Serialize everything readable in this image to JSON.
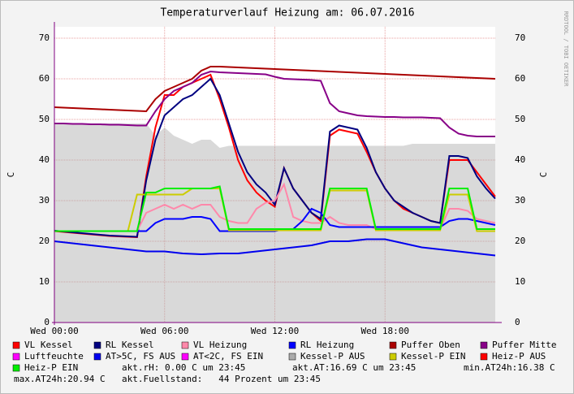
{
  "chart_data": {
    "type": "line",
    "title": "Temperaturverlauf Heizung am: 06.07.2016",
    "y_label": "C",
    "watermark": "RRDTOOL / TOBI OETIKER",
    "grid": true,
    "xlim": [
      0,
      24
    ],
    "ylim": [
      0,
      72.8
    ],
    "yticks": [
      0,
      10,
      20,
      30,
      40,
      50,
      60,
      70
    ],
    "xticks": [
      {
        "value": 0,
        "label": "Wed 00:00"
      },
      {
        "value": 6,
        "label": "Wed 06:00"
      },
      {
        "value": 12,
        "label": "Wed 12:00"
      },
      {
        "value": 18,
        "label": "Wed 18:00"
      }
    ],
    "x": [
      0,
      0.5,
      1,
      1.5,
      2,
      2.5,
      3,
      3.5,
      4,
      4.5,
      5,
      5.5,
      6,
      6.5,
      7,
      7.5,
      8,
      8.5,
      9,
      9.5,
      10,
      10.5,
      11,
      11.5,
      12,
      12.5,
      13,
      13.5,
      14,
      14.5,
      15,
      15.5,
      16,
      16.5,
      17,
      17.5,
      18,
      18.5,
      19,
      19.5,
      20,
      20.5,
      21,
      21.5,
      22,
      22.5,
      23,
      23.5,
      24
    ],
    "series": [
      {
        "name": "VL Kessel",
        "color": "#ff0000",
        "values": [
          22.5,
          22.3,
          22.1,
          21.9,
          21.7,
          21.5,
          21.3,
          21.2,
          21.1,
          21,
          36,
          48,
          56,
          56,
          58,
          59,
          60,
          61,
          55,
          48,
          40,
          35,
          32,
          30,
          28.5,
          38,
          33,
          30,
          27,
          25,
          46,
          47.5,
          47,
          46.5,
          42,
          37,
          33,
          30,
          28,
          27,
          26,
          25,
          24.5,
          40,
          40,
          40,
          37,
          34,
          31
        ]
      },
      {
        "name": "RL Kessel",
        "color": "#000080",
        "values": [
          22.6,
          22.4,
          22.2,
          22,
          21.8,
          21.6,
          21.4,
          21.3,
          21.2,
          21.1,
          35,
          45,
          51,
          53,
          55,
          56,
          58,
          60,
          56,
          49,
          42,
          37,
          34,
          32,
          29,
          38,
          33,
          30,
          27,
          25.5,
          47,
          48.5,
          48,
          47.5,
          43,
          37,
          33,
          30,
          28.5,
          27,
          26,
          25,
          24.5,
          41,
          41,
          40.5,
          36,
          33,
          30.5
        ]
      },
      {
        "name": "VL Heizung",
        "color": "#ff88aa",
        "values": [
          22.5,
          22.5,
          22.5,
          22.5,
          22.5,
          22.5,
          22.5,
          22.5,
          22.5,
          22.5,
          27,
          28,
          29,
          28,
          29,
          28,
          29,
          29,
          26,
          25,
          24.5,
          24.5,
          28,
          29.5,
          30,
          34,
          26,
          25,
          24.5,
          24.5,
          26,
          24.5,
          24,
          24,
          24,
          23,
          23,
          23,
          23,
          23,
          23,
          23,
          23,
          28,
          28,
          27.5,
          25.5,
          25,
          24.5
        ]
      },
      {
        "name": "RL Heizung",
        "color": "#0000ff",
        "values": [
          22.5,
          22.5,
          22.5,
          22.5,
          22.5,
          22.5,
          22.5,
          22.5,
          22.5,
          22.5,
          22.5,
          24.5,
          25.5,
          25.5,
          25.5,
          26,
          26,
          25.5,
          22.5,
          22.5,
          22.5,
          22.5,
          22.5,
          22.5,
          22.5,
          23,
          23,
          25,
          28,
          27,
          24,
          23.5,
          23.5,
          23.5,
          23.5,
          23.5,
          23.5,
          23.5,
          23.5,
          23.5,
          23.5,
          23.5,
          23.5,
          25,
          25.5,
          25.5,
          25,
          24.5,
          24
        ]
      },
      {
        "name": "Puffer Oben",
        "color": "#aa0000",
        "values": [
          53,
          52.9,
          52.8,
          52.7,
          52.6,
          52.5,
          52.4,
          52.3,
          52.2,
          52.1,
          52,
          55,
          57,
          58,
          59,
          60,
          62,
          63,
          63,
          62.9,
          62.8,
          62.7,
          62.6,
          62.5,
          62.4,
          62.3,
          62.2,
          62.1,
          62,
          61.9,
          61.8,
          61.7,
          61.6,
          61.5,
          61.4,
          61.3,
          61.2,
          61.1,
          61,
          60.9,
          60.8,
          60.7,
          60.6,
          60.5,
          60.4,
          60.3,
          60.2,
          60.1,
          60
        ]
      },
      {
        "name": "Puffer Mitte",
        "color": "#880088",
        "values": [
          49,
          49,
          48.9,
          48.9,
          48.8,
          48.8,
          48.7,
          48.7,
          48.6,
          48.5,
          48.5,
          52,
          55,
          57,
          58,
          59,
          61,
          61.8,
          61.6,
          61.5,
          61.4,
          61.3,
          61.2,
          61.1,
          60.5,
          60,
          59.9,
          59.8,
          59.7,
          59.5,
          54,
          52,
          51.5,
          51,
          50.8,
          50.7,
          50.6,
          50.6,
          50.5,
          50.5,
          50.5,
          50.4,
          50.3,
          48,
          46.5,
          46,
          45.8,
          45.8,
          45.8
        ]
      },
      {
        "name": "Luftfeuchte",
        "color": "#ff00ff",
        "values": [
          null,
          null,
          null,
          null,
          null,
          null,
          null,
          null,
          null,
          null,
          null,
          null,
          null,
          null,
          null,
          null,
          null,
          null,
          null,
          null,
          null,
          null,
          null,
          null,
          null,
          null,
          null,
          null,
          null,
          null,
          null,
          null,
          null,
          null,
          null,
          null,
          null,
          null,
          null,
          null,
          null,
          null,
          null,
          null,
          null,
          null,
          null,
          null,
          null
        ]
      },
      {
        "name": "AT>5C, FS AUS",
        "color": "#0000ee",
        "values": [
          20,
          19.75,
          19.5,
          19.25,
          19,
          18.75,
          18.5,
          18.25,
          18,
          17.75,
          17.5,
          17.5,
          17.5,
          17.25,
          17,
          16.9,
          16.8,
          16.9,
          17,
          17,
          17,
          17.25,
          17.5,
          17.75,
          18,
          18.25,
          18.5,
          18.75,
          19,
          19.5,
          20,
          20,
          20,
          20.25,
          20.5,
          20.5,
          20.5,
          20,
          19.5,
          19,
          18.5,
          18.25,
          18,
          17.75,
          17.5,
          17.25,
          17,
          16.75,
          16.5
        ]
      },
      {
        "name": "AT<2C, FS EIN",
        "color": "#ff00ff",
        "values": [
          null,
          null,
          null,
          null,
          null,
          null,
          null,
          null,
          null,
          null,
          null,
          null,
          null,
          null,
          null,
          null,
          null,
          null,
          null,
          null,
          null,
          null,
          null,
          null,
          null,
          null,
          null,
          null,
          null,
          null,
          null,
          null,
          null,
          null,
          null,
          null,
          null,
          null,
          null,
          null,
          null,
          null,
          null,
          null,
          null,
          null,
          null,
          null,
          null
        ]
      },
      {
        "name": "Kessel-P AUS",
        "color": "#aaaaaa",
        "style": "area",
        "values": [
          49,
          49,
          49,
          49,
          49,
          49,
          49,
          49,
          49,
          49,
          49,
          46,
          48,
          46,
          45,
          44,
          45,
          45,
          43,
          43.5,
          43.5,
          43.5,
          43.5,
          43.5,
          43.5,
          43.5,
          43.5,
          43.5,
          43.5,
          43.5,
          43.5,
          43.5,
          43.5,
          43.5,
          43.5,
          43.5,
          43.5,
          43.5,
          43.5,
          44,
          44,
          44,
          44,
          44,
          44,
          44,
          44,
          44,
          44
        ]
      },
      {
        "name": "Kessel-P EIN",
        "color": "#cccc00",
        "values": [
          22.5,
          22.5,
          22.5,
          22.5,
          22.5,
          22.5,
          22.5,
          22.5,
          22.5,
          31.5,
          31.5,
          31.5,
          31.5,
          31.5,
          31.5,
          33,
          33,
          33,
          33,
          22.7,
          22.7,
          22.7,
          22.7,
          22.7,
          22.7,
          22.7,
          22.7,
          22.7,
          22.7,
          22.7,
          32.5,
          32.5,
          32.5,
          32.5,
          32.5,
          22.7,
          22.7,
          22.7,
          22.7,
          22.7,
          22.7,
          22.7,
          22.7,
          31.5,
          31.5,
          31.5,
          22.5,
          22.5,
          22.5
        ]
      },
      {
        "name": "Heiz-P AUS",
        "color": "#ff0000",
        "values": [
          null,
          null,
          null,
          null,
          null,
          null,
          null,
          null,
          null,
          null,
          null,
          null,
          null,
          null,
          null,
          null,
          null,
          null,
          null,
          null,
          null,
          null,
          null,
          null,
          null,
          null,
          null,
          null,
          null,
          null,
          null,
          null,
          null,
          null,
          null,
          null,
          null,
          null,
          null,
          null,
          null,
          null,
          null,
          null,
          null,
          null,
          null,
          null,
          null
        ]
      },
      {
        "name": "Heiz-P EIN",
        "color": "#00ee00",
        "values": [
          22.5,
          22.5,
          22.5,
          22.5,
          22.5,
          22.5,
          22.5,
          22.5,
          22.5,
          22.5,
          32,
          32,
          33,
          33,
          33,
          33,
          33,
          33,
          33.5,
          23,
          23,
          23,
          23,
          23,
          23,
          23,
          23,
          23,
          23,
          23,
          33,
          33,
          33,
          33,
          33,
          23,
          23,
          23,
          23,
          23,
          23,
          23,
          23,
          33,
          33,
          33,
          23,
          23,
          23
        ]
      }
    ],
    "comments": [
      "akt.rH: 0.00 C um 23:45",
      "akt.AT:16.69 C um 23:45",
      "min.AT24h:16.38 C",
      "max.AT24h:20.94 C",
      "akt.Fuellstand:   44 Prozent um 23:45"
    ]
  }
}
